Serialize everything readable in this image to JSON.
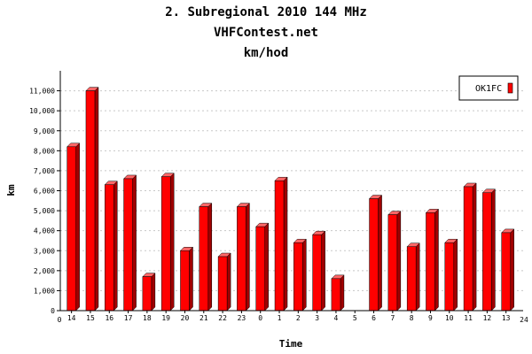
{
  "chart_data": {
    "type": "bar",
    "title": "2. Subregional 2010 144 MHz",
    "subtitle": "VHFContest.net",
    "subtitle2": "km/hod",
    "xlabel": "Time",
    "ylabel": "km",
    "categories": [
      "14",
      "15",
      "16",
      "17",
      "18",
      "19",
      "20",
      "21",
      "22",
      "23",
      "0",
      "1",
      "2",
      "3",
      "4",
      "5",
      "6",
      "7",
      "8",
      "9",
      "10",
      "11",
      "12",
      "13"
    ],
    "x_edge_labels": [
      "0",
      "24"
    ],
    "series": [
      {
        "name": "OK1FC",
        "color": "#ff0000",
        "values": [
          8200,
          11000,
          6300,
          6600,
          1700,
          6700,
          3000,
          5200,
          2700,
          5200,
          4200,
          6500,
          3400,
          3800,
          1600,
          0,
          5600,
          4800,
          3200,
          4900,
          3400,
          6200,
          5900,
          3900
        ]
      }
    ],
    "yticks": [
      0,
      1000,
      2000,
      3000,
      4000,
      5000,
      6000,
      7000,
      8000,
      9000,
      10000,
      11000
    ],
    "ytick_labels": [
      "0",
      "1,000",
      "2,000",
      "3,000",
      "4,000",
      "5,000",
      "6,000",
      "7,000",
      "8,000",
      "9,000",
      "10,000",
      "11,000"
    ],
    "ylim": [
      0,
      12000
    ],
    "grid": true,
    "legend_position": "top-right"
  }
}
